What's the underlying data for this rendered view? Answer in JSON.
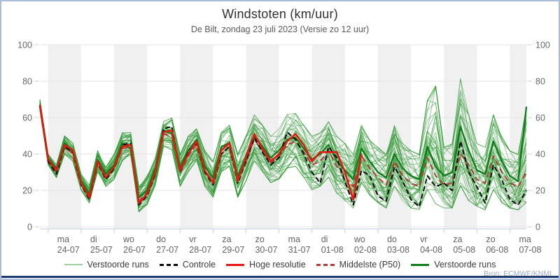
{
  "header": {
    "title": "Windstoten (km/uur)",
    "subtitle": "De Bilt, zondag 23 juli 2023 (Versie zo 12 uur)"
  },
  "source": "Bron: ECMWF/KNMI",
  "legend": [
    {
      "label": "Verstoorde runs",
      "swatch": "thin-green"
    },
    {
      "label": "Controle",
      "swatch": "black-dashed"
    },
    {
      "label": "Hoge resolutie",
      "swatch": "red-solid"
    },
    {
      "label": "Middelste (P50)",
      "swatch": "red-dashed"
    },
    {
      "label": "Verstoorde runs",
      "swatch": "green-thick"
    }
  ],
  "chart_data": {
    "type": "line",
    "title": "Windstoten (km/uur)",
    "subtitle": "De Bilt, zondag 23 juli 2023 (Versie zo 12 uur)",
    "ylabel": "km/uur",
    "ylim": [
      0,
      100
    ],
    "yticks": [
      0,
      20,
      40,
      60,
      80,
      100
    ],
    "grid": "horizontal",
    "day_bands": "alternating gray starting at ma 24-07",
    "x_step_hours": 6,
    "x_total_hours": 354,
    "first_day_boundary_hour": 6,
    "day_width_hours": 24,
    "day_labels": [
      {
        "day": "ma",
        "date": "24-07"
      },
      {
        "day": "di",
        "date": "25-07"
      },
      {
        "day": "wo",
        "date": "26-07"
      },
      {
        "day": "do",
        "date": "27-07"
      },
      {
        "day": "vr",
        "date": "28-07"
      },
      {
        "day": "za",
        "date": "29-07"
      },
      {
        "day": "zo",
        "date": "30-07"
      },
      {
        "day": "ma",
        "date": "31-07"
      },
      {
        "day": "di",
        "date": "01-08"
      },
      {
        "day": "wo",
        "date": "02-08"
      },
      {
        "day": "do",
        "date": "03-08"
      },
      {
        "day": "vr",
        "date": "04-08"
      },
      {
        "day": "za",
        "date": "05-08"
      },
      {
        "day": "zo",
        "date": "06-08"
      },
      {
        "day": "ma",
        "date": "07-08"
      }
    ],
    "series": {
      "hres": {
        "name": "Hoge resolutie",
        "color": "#ea1410",
        "style": "solid",
        "values": [
          67,
          37,
          31,
          45,
          42,
          24,
          16,
          36,
          27,
          33,
          44,
          45,
          13,
          18,
          30,
          52,
          53,
          31,
          40,
          47,
          31,
          24,
          42,
          46,
          25,
          38,
          51,
          43,
          36,
          40,
          47,
          51,
          45,
          36,
          41,
          41,
          41,
          30,
          15,
          40
        ]
      },
      "control": {
        "name": "Controle",
        "color": "#0a0a0a",
        "style": "dashed",
        "values": [
          66,
          36,
          29,
          44,
          41,
          23,
          15,
          35,
          26,
          32,
          45,
          46,
          12,
          17,
          29,
          54,
          55,
          30,
          41,
          46,
          30,
          23,
          40,
          44,
          24,
          36,
          49,
          41,
          34,
          38,
          52,
          48,
          40,
          30,
          24,
          44,
          38,
          25,
          12,
          31,
          28,
          17,
          14,
          33,
          25,
          15,
          11,
          28,
          22,
          24,
          20,
          47,
          30,
          22,
          13,
          34,
          26,
          15,
          12,
          20
        ]
      },
      "p50": {
        "name": "Middelste (P50)",
        "color": "#b03a36",
        "style": "dashed",
        "values": [
          66,
          36,
          30,
          44,
          40,
          23,
          17,
          35,
          27,
          32,
          43,
          44,
          14,
          19,
          29,
          51,
          50,
          30,
          39,
          45,
          30,
          25,
          40,
          44,
          26,
          36,
          48,
          42,
          35,
          39,
          45,
          47,
          41,
          34,
          36,
          42,
          33,
          28,
          22,
          39,
          32,
          27,
          23,
          36,
          28,
          24,
          22,
          38,
          28,
          23,
          24,
          40,
          34,
          26,
          24,
          39,
          30,
          24,
          22,
          30
        ]
      },
      "bold_member": {
        "name": "Verstoorde runs",
        "color": "#0e7c18",
        "style": "solid-thick",
        "values": [
          67,
          38,
          32,
          46,
          41,
          25,
          18,
          37,
          29,
          34,
          46,
          43,
          16,
          20,
          32,
          53,
          51,
          33,
          42,
          48,
          33,
          27,
          44,
          46,
          28,
          39,
          50,
          44,
          38,
          42,
          48,
          49,
          43,
          37,
          40,
          45,
          36,
          31,
          26,
          43,
          36,
          30,
          27,
          40,
          32,
          28,
          26,
          44,
          33,
          28,
          30,
          55,
          42,
          31,
          29,
          47,
          36,
          28,
          25,
          66
        ]
      },
      "ensemble": {
        "name": "Verstoorde runs",
        "color": "#2e9732",
        "count": 46,
        "envelope_min": [
          64,
          34,
          27,
          40,
          36,
          20,
          13,
          30,
          22,
          26,
          36,
          38,
          8,
          12,
          22,
          44,
          42,
          22,
          30,
          36,
          22,
          16,
          30,
          33,
          16,
          25,
          36,
          30,
          24,
          26,
          32,
          33,
          27,
          20,
          22,
          27,
          18,
          14,
          10,
          24,
          17,
          13,
          10,
          22,
          14,
          10,
          9,
          20,
          12,
          10,
          10,
          22,
          14,
          11,
          9,
          20,
          13,
          10,
          9,
          13
        ],
        "envelope_max": [
          70,
          40,
          34,
          50,
          46,
          29,
          23,
          42,
          33,
          40,
          52,
          52,
          22,
          28,
          38,
          58,
          60,
          40,
          50,
          54,
          42,
          36,
          52,
          56,
          40,
          50,
          62,
          56,
          50,
          54,
          62,
          64,
          56,
          50,
          52,
          58,
          50,
          46,
          40,
          56,
          48,
          44,
          40,
          56,
          46,
          42,
          40,
          70,
          78,
          44,
          46,
          82,
          62,
          46,
          44,
          62,
          50,
          42,
          40,
          66
        ]
      }
    },
    "colors": {
      "band": "#f0f0f0",
      "grid": "#e3e3e3",
      "axis": "#c2cde0",
      "tick_text": "#686868",
      "border": "#a9bcd9",
      "bottom_bar": "#1e3a6e",
      "source_text": "#9cabc4"
    }
  }
}
